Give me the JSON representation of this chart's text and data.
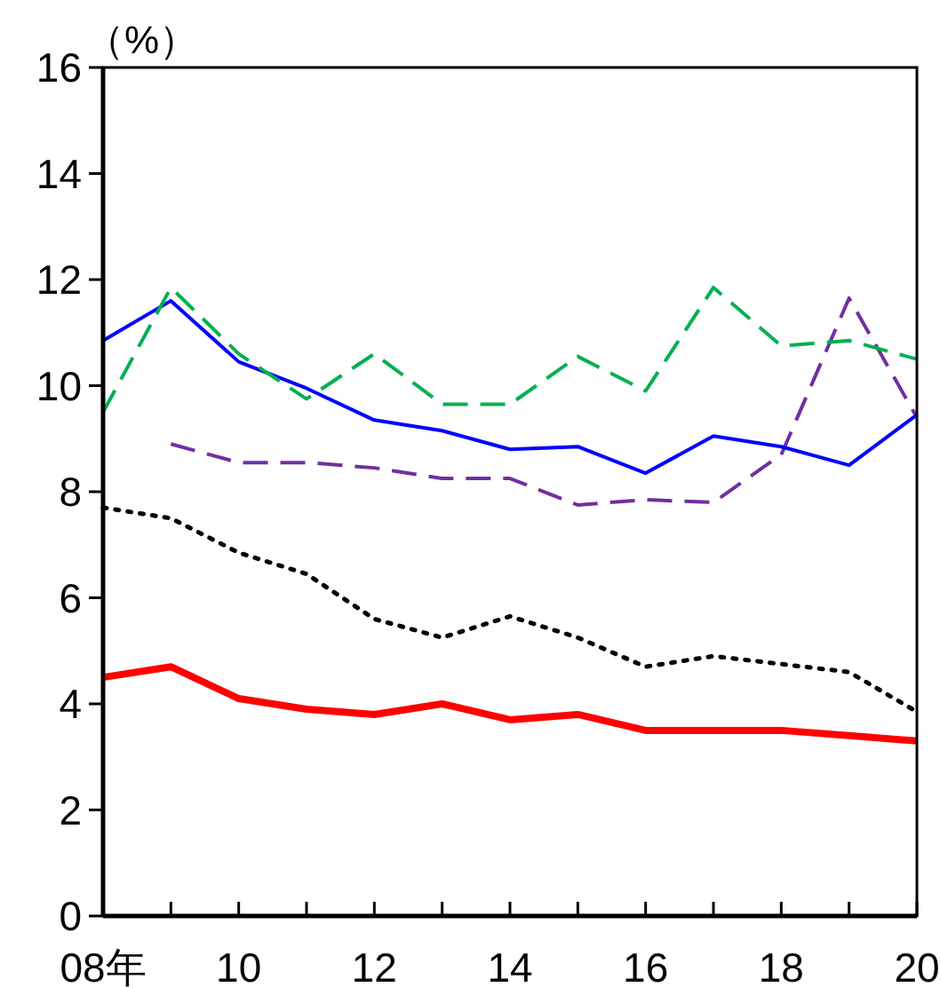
{
  "chart_data": {
    "type": "line",
    "ylabel": "（%）",
    "x": [
      8,
      9,
      10,
      11,
      12,
      13,
      14,
      15,
      16,
      17,
      18,
      19,
      20
    ],
    "xlim": [
      8,
      20
    ],
    "xticks": [
      {
        "value": 8,
        "label": "08年"
      },
      {
        "value": 9,
        "label": null
      },
      10,
      {
        "value": 11,
        "label": null
      },
      12,
      {
        "value": 13,
        "label": null
      },
      14,
      {
        "value": 15,
        "label": null
      },
      16,
      {
        "value": 17,
        "label": null
      },
      18,
      {
        "value": 19,
        "label": null
      },
      20
    ],
    "ylim": [
      0,
      16
    ],
    "yticks": [
      0,
      2,
      4,
      6,
      8,
      10,
      12,
      14,
      16
    ],
    "grid": false,
    "marker": "none",
    "series": [
      {
        "color": "#ff0000",
        "line_style": "solid",
        "values": [
          4.5,
          4.7,
          4.1,
          3.9,
          3.8,
          4.0,
          3.7,
          3.8,
          3.5,
          3.5,
          3.5,
          3.4,
          3.3
        ]
      },
      {
        "color": "#000000",
        "line_style": "dotted",
        "values": [
          7.7,
          7.5,
          6.85,
          6.45,
          5.6,
          5.25,
          5.65,
          5.25,
          4.7,
          4.9,
          4.75,
          4.6,
          3.85
        ]
      },
      {
        "color": "#7030a0",
        "line_style": "dashed",
        "values": [
          null,
          8.9,
          8.55,
          8.55,
          8.45,
          8.25,
          8.25,
          7.75,
          7.85,
          7.8,
          8.7,
          11.65,
          9.4
        ]
      },
      {
        "color": "#0000ff",
        "line_style": "solid",
        "values": [
          10.85,
          11.6,
          10.45,
          9.95,
          9.35,
          9.15,
          8.8,
          8.85,
          8.35,
          9.05,
          8.85,
          8.5,
          9.45
        ]
      },
      {
        "color": "#00b050",
        "line_style": "dashed",
        "values": [
          9.5,
          11.85,
          10.6,
          9.75,
          10.6,
          9.65,
          9.65,
          10.55,
          9.9,
          11.85,
          10.75,
          10.85,
          10.5
        ]
      }
    ]
  }
}
